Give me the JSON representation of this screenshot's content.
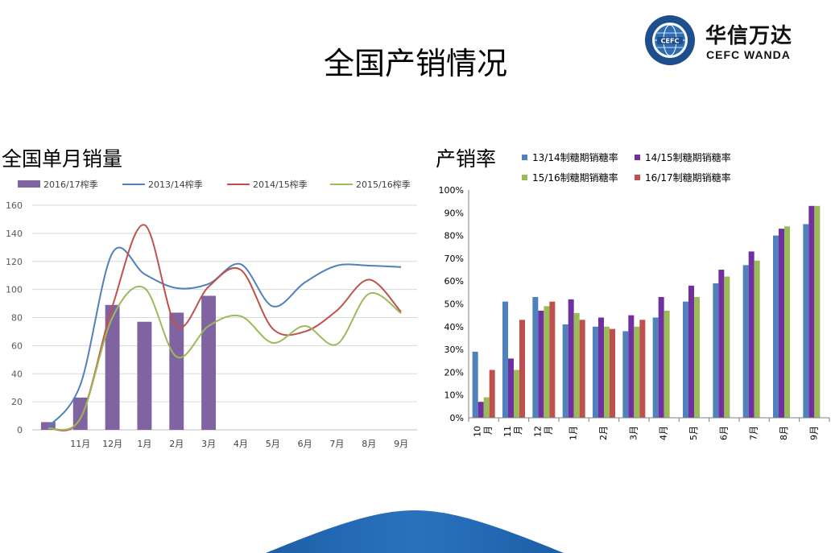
{
  "slide": {
    "title": "全国产销情况"
  },
  "logo": {
    "name_cn": "华信万达",
    "name_en": "CEFC WANDA"
  },
  "chart_data": [
    {
      "type": "bar",
      "title": "全国单月销量",
      "ylim": [
        0,
        160
      ],
      "yticks": [
        0,
        20,
        40,
        60,
        80,
        100,
        120,
        140,
        160
      ],
      "categories": [
        "",
        "11月",
        "12月",
        "1月",
        "2月",
        "3月",
        "4月",
        "5月",
        "6月",
        "7月",
        "8月",
        "9月"
      ],
      "grid": true,
      "legend": "top",
      "series": [
        {
          "name": "2016/17榨季",
          "kind": "bar",
          "color": "#8064a2",
          "values": [
            5.5,
            23,
            89,
            77,
            83.5,
            95.5,
            null,
            null,
            null,
            null,
            null,
            null
          ]
        },
        {
          "name": "2013/14榨季",
          "kind": "line",
          "color": "#4f81bd",
          "values": [
            2,
            32,
            126,
            111,
            101,
            104,
            118,
            88,
            105,
            117,
            117,
            116
          ]
        },
        {
          "name": "2014/15榨季",
          "kind": "line",
          "color": "#c0504d",
          "values": [
            1,
            8,
            88,
            146,
            74,
            102,
            114,
            72,
            70,
            85,
            107,
            84
          ]
        },
        {
          "name": "2015/16榨季",
          "kind": "line",
          "color": "#9bbb59",
          "values": [
            1,
            8,
            80,
            101,
            52,
            74,
            81,
            62,
            74,
            61,
            97,
            83
          ]
        }
      ]
    },
    {
      "type": "bar",
      "title": "产销率",
      "ylim": [
        0,
        1
      ],
      "yticks": [
        "0%",
        "10%",
        "20%",
        "30%",
        "40%",
        "50%",
        "60%",
        "70%",
        "80%",
        "90%",
        "100%"
      ],
      "categories": [
        [
          "10",
          "月"
        ],
        [
          "11",
          "月"
        ],
        [
          "12",
          "月"
        ],
        [
          "1月"
        ],
        [
          "2月"
        ],
        [
          "3月"
        ],
        [
          "4月"
        ],
        [
          "5月"
        ],
        [
          "6月"
        ],
        [
          "7月"
        ],
        [
          "8月"
        ],
        [
          "9月"
        ]
      ],
      "legend": "top",
      "series": [
        {
          "name": "13/14制糖期销糖率",
          "color": "#4f81bd",
          "values": [
            0.29,
            0.51,
            0.53,
            0.41,
            0.4,
            0.38,
            0.44,
            0.51,
            0.59,
            0.67,
            0.8,
            0.85
          ]
        },
        {
          "name": "14/15制糖期销糖率",
          "color": "#7030a0",
          "values": [
            0.07,
            0.26,
            0.47,
            0.52,
            0.44,
            0.45,
            0.53,
            0.58,
            0.65,
            0.73,
            0.83,
            0.93
          ]
        },
        {
          "name": "15/16制糖期销糖率",
          "color": "#9bbb59",
          "values": [
            0.09,
            0.21,
            0.49,
            0.46,
            0.4,
            0.4,
            0.47,
            0.53,
            0.62,
            0.69,
            0.84,
            0.93
          ]
        },
        {
          "name": "16/17制糖期销糖率",
          "color": "#c0504d",
          "values": [
            0.21,
            0.43,
            0.51,
            0.43,
            0.39,
            0.43,
            null,
            null,
            null,
            null,
            null,
            null
          ]
        }
      ]
    }
  ]
}
